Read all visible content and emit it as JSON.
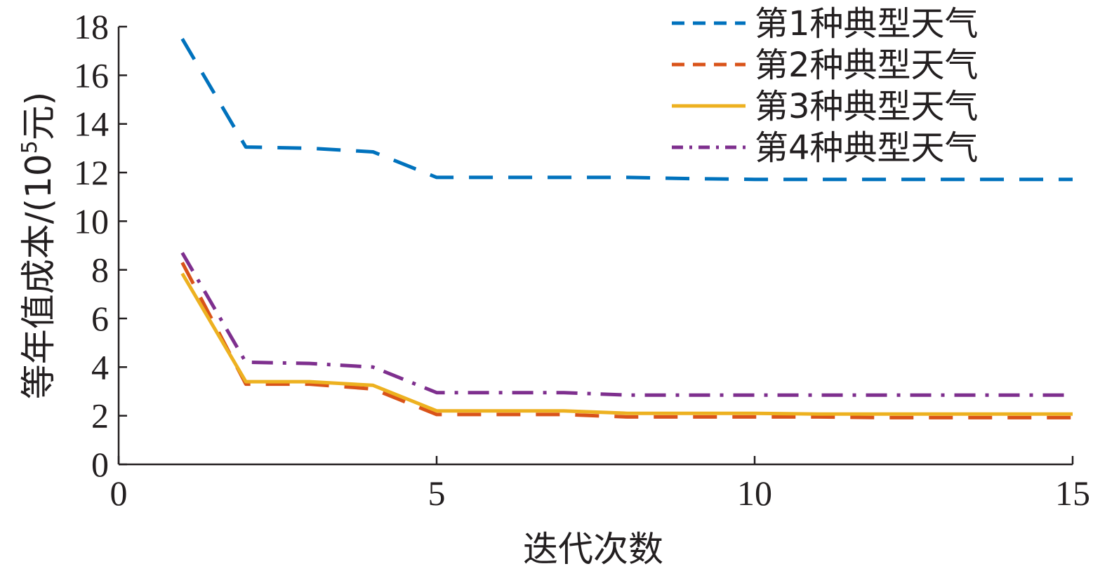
{
  "chart_data": {
    "type": "line",
    "title": "",
    "xlabel": "迭代次数",
    "ylabel_main": "等年值成本/(10",
    "ylabel_sup": "5",
    "ylabel_end": "元)",
    "xlim": [
      0,
      15
    ],
    "ylim": [
      0,
      18
    ],
    "xticks": [
      0,
      5,
      10,
      15
    ],
    "yticks": [
      0,
      2,
      4,
      6,
      8,
      10,
      12,
      14,
      16,
      18
    ],
    "grid": false,
    "legend_position": "top-right",
    "series": [
      {
        "name": "第1种典型天气",
        "color": "#0072bd",
        "dash": "dashed",
        "x": [
          1,
          2,
          3,
          4,
          5,
          6,
          7,
          8,
          9,
          10,
          11,
          12,
          13,
          14,
          15
        ],
        "y": [
          17.5,
          13.05,
          13.0,
          12.85,
          11.8,
          11.8,
          11.8,
          11.8,
          11.75,
          11.72,
          11.72,
          11.72,
          11.72,
          11.72,
          11.72
        ]
      },
      {
        "name": "第2种典型天气",
        "color": "#d95319",
        "dash": "dashed",
        "x": [
          1,
          2,
          3,
          4,
          5,
          6,
          7,
          8,
          9,
          10,
          11,
          12,
          13,
          14,
          15
        ],
        "y": [
          8.3,
          3.3,
          3.3,
          3.1,
          2.05,
          2.05,
          2.05,
          1.95,
          1.95,
          1.95,
          1.95,
          1.92,
          1.92,
          1.92,
          1.92
        ]
      },
      {
        "name": "第3种典型天气",
        "color": "#edb120",
        "dash": "solid",
        "x": [
          1,
          2,
          3,
          4,
          5,
          6,
          7,
          8,
          9,
          10,
          11,
          12,
          13,
          14,
          15
        ],
        "y": [
          7.85,
          3.4,
          3.4,
          3.25,
          2.2,
          2.2,
          2.2,
          2.1,
          2.1,
          2.1,
          2.07,
          2.07,
          2.07,
          2.07,
          2.07
        ]
      },
      {
        "name": "第4种典型天气",
        "color": "#7e2f8e",
        "dash": "dashdot",
        "x": [
          1,
          2,
          3,
          4,
          5,
          6,
          7,
          8,
          9,
          10,
          11,
          12,
          13,
          14,
          15
        ],
        "y": [
          8.7,
          4.2,
          4.15,
          4.0,
          2.95,
          2.95,
          2.95,
          2.85,
          2.85,
          2.85,
          2.85,
          2.85,
          2.85,
          2.85,
          2.85
        ]
      }
    ]
  }
}
